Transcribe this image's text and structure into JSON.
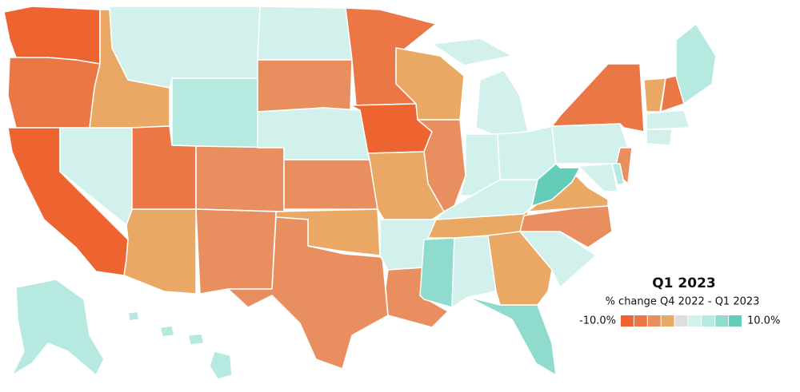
{
  "legend": {
    "title": "Q1 2023",
    "subtitle": "% change Q4 2022 - Q1 2023",
    "min": {
      "value": -10,
      "label": "-10.0%"
    },
    "max": {
      "value": 10,
      "label": "10.0%"
    },
    "colors": [
      "#ee6431",
      "#ea7745",
      "#e98f5f",
      "#eaa865",
      "#dedede",
      "#d2f1ec",
      "#b6e9e0",
      "#8fdccf",
      "#64cdb9"
    ]
  },
  "regions": [
    0,
    1,
    0,
    5,
    3,
    5,
    6,
    1,
    2,
    3,
    2,
    5,
    2,
    5,
    2,
    3,
    2,
    1,
    0,
    3,
    5,
    2,
    5,
    5,
    3,
    5,
    2,
    7,
    5,
    3,
    5,
    3,
    7,
    5,
    2,
    3,
    8,
    5,
    1,
    2,
    5,
    6,
    3,
    1,
    6,
    5,
    5,
    6,
    6
  ]
}
